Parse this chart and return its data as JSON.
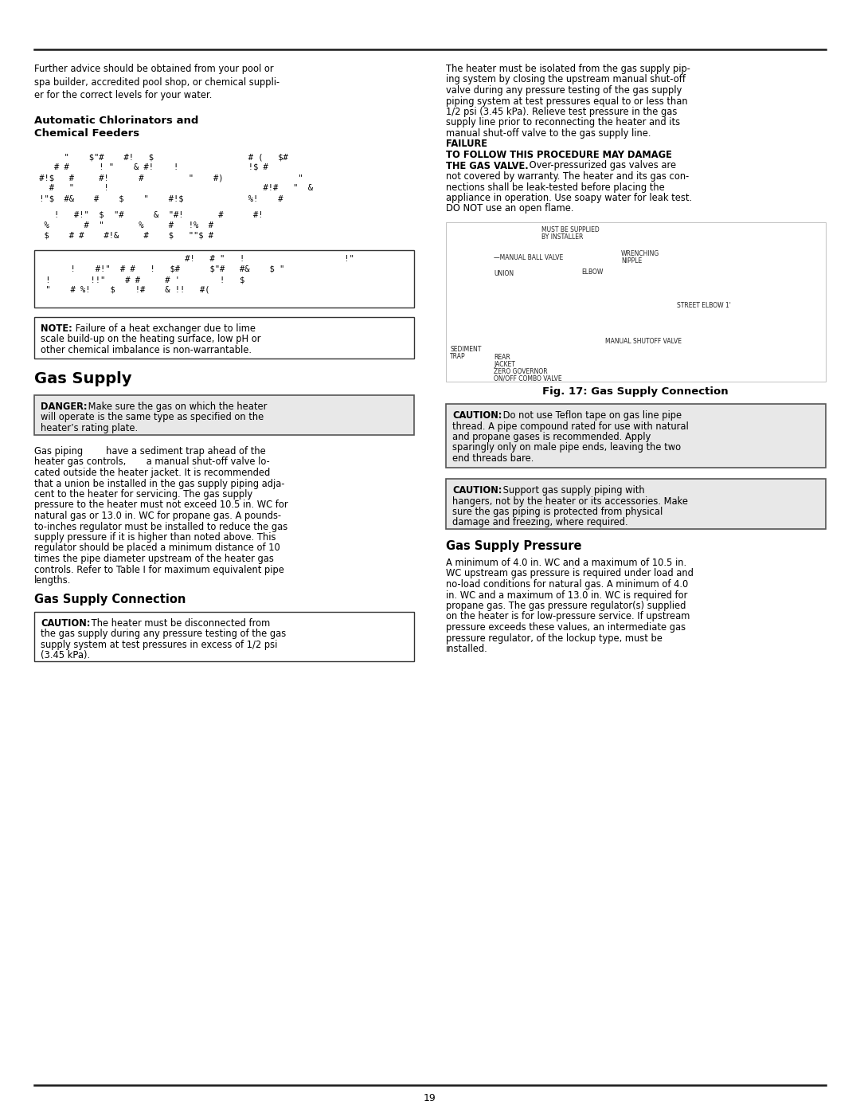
{
  "page_number": "19",
  "bg_color": "#ffffff",
  "text_color": "#000000",
  "top_para_left": "Further advice should be obtained from your pool or\nspa builder, accredited pool shop, or chemical suppli-\ner for the correct levels for your water.",
  "auto_chlor_title": "Automatic Chlorinators and\nChemical Feeders",
  "right_top_para_normal": "The heater must be isolated from the gas supply pip-\ning system by closing the upstream manual shut-off\nvalve during any pressure testing of the gas supply\npiping system at test pressures equal to or less than\n1/2 psi (3.45 kPa). Relieve test pressure in the gas\nsupply line prior to reconnecting the heater and its\nmanual shut-off valve to the gas supply line. ",
  "right_top_para_bold": "FAILURE\nTO FOLLOW THIS PROCEDURE MAY DAMAGE\nTHE GAS VALVE.",
  "right_top_para_end": " Over-pressurized gas valves are\nnot covered by warranty. The heater and its gas con-\nnections shall be leak-tested before placing the\nappliance in operation. Use soapy water for leak test.\nDO NOT use an open flame.",
  "fig_caption": "Fig. 17: Gas Supply Connection",
  "gas_supply_title": "Gas Supply",
  "gas_supply_connection_title": "Gas Supply Connection",
  "gas_supply_pressure_title": "Gas Supply Pressure",
  "danger_text_bold": "DANGER:",
  "danger_text_rest": " Make sure the gas on which the heater\nwill operate is the same type as specified on the\nheater’s rating plate.",
  "gas_piping_text": "Gas piping        have a sediment trap ahead of the\nheater gas controls,       a manual shut-off valve lo-\ncated outside the heater jacket. It is recommended\nthat a union be installed in the gas supply piping adja-\ncent to the heater for servicing. The gas supply\npressure to the heater must not exceed 10.5 in. WC for\nnatural gas or 13.0 in. WC for propane gas. A pounds-\nto-inches regulator must be installed to reduce the gas\nsupply pressure if it is higher than noted above. This\nregulator should be placed a minimum distance of 10\ntimes the pipe diameter upstream of the heater gas\ncontrols. Refer to Table I for maximum equivalent pipe\nlengths.",
  "caution_disconnect_bold": "CAUTION:",
  "caution_disconnect_rest": " The heater must be disconnected from\nthe gas supply during any pressure testing of the gas\nsupply system at test pressures in excess of 1/2 psi\n(3.45 kPa).",
  "caution_teflon_bold": "CAUTION:",
  "caution_teflon_rest": " Do not use Teflon tape on gas line pipe\nthread. A pipe compound rated for use with natural\nand propane gases is recommended. Apply\nsparingly only on male pipe ends, leaving the two\nend threads bare.",
  "caution_support_bold": "CAUTION:",
  "caution_support_rest": " Support gas supply piping with\nhangers, not by the heater or its accessories. Make\nsure the gas piping is protected from physical\ndamage and freezing, where required.",
  "gas_pressure_text": "A minimum of 4.0 in. WC and a maximum of 10.5 in.\nWC upstream gas pressure is required under load and\nno-load conditions for natural gas. A minimum of 4.0\nin. WC and a maximum of 13.0 in. WC is required for\npropane gas. The gas pressure regulator(s) supplied\non the heater is for low-pressure service. If upstream\npressure exceeds these values, an intermediate gas\npressure regulator, of the lockup type, must be\ninstalled.",
  "note_bold": "NOTE:",
  "note_rest": " Failure of a heat exchanger due to lime\nscale build-up on the heating surface, low pH or\nother chemical imbalance is non-warrantable.",
  "chlor_lines_1": [
    "      \"    $\"#    #!   $                   # (   $#",
    "    # #      ! \"    & #!    !              !$ #",
    " #!$   #     #!      #         \"    #)               \"",
    "   #   \"      !                               #!#   \"  &",
    " !\"$  #&    #    $    \"    #!$             %!    #"
  ],
  "chlor_lines_2": [
    "    !   #!\"  $  \"#      &  \"#!       #      #!",
    "  %       #  \"       %     #   !%  #",
    "  $    # #    #!&     #    $   \"\"$ #"
  ],
  "box_lines": [
    "                             #!   # \"   !                    !\"",
    "      !    #!\"  # #   !   $#      $\"#   #&    $ \"",
    " !        !!\"    # #     # '        !   $",
    " \"    # %!    $    !#    & !!   #("
  ]
}
